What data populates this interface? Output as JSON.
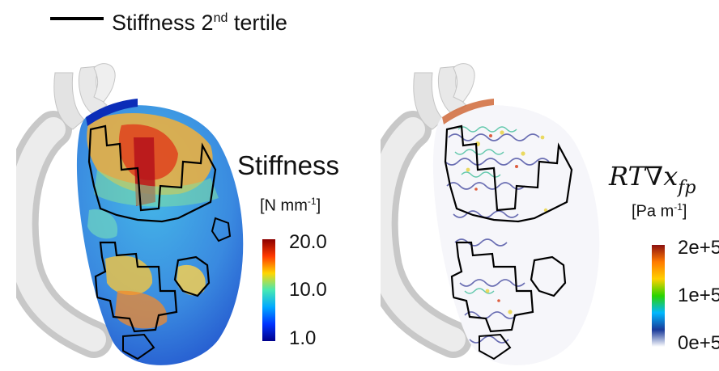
{
  "legend": {
    "label_main": "Stiffness 2",
    "label_sup": "nd",
    "label_tail": " tertile"
  },
  "left_panel": {
    "title": "Stiffness",
    "units_main": "[N mm",
    "units_sup": "-1",
    "units_tail": "]",
    "colorbar_colors": [
      "#8b0000",
      "#ff3a00",
      "#ffd600",
      "#46e8b4",
      "#00a8ff",
      "#0033ff",
      "#00008b"
    ],
    "ticks": [
      "20.0",
      "10.0",
      "1.0"
    ]
  },
  "right_panel": {
    "title_main": "RT∇",
    "title_x": "x",
    "title_sub": "fp",
    "units_main": "[Pa m",
    "units_sup": "-1",
    "units_tail": "]",
    "colorbar_colors": [
      "#8b1010",
      "#ff7a00",
      "#ffd000",
      "#2ad400",
      "#00b8ff",
      "#1a3a9a",
      "#ffffff"
    ],
    "ticks": [
      "2e+5",
      "1e+5",
      "0e+5"
    ]
  }
}
